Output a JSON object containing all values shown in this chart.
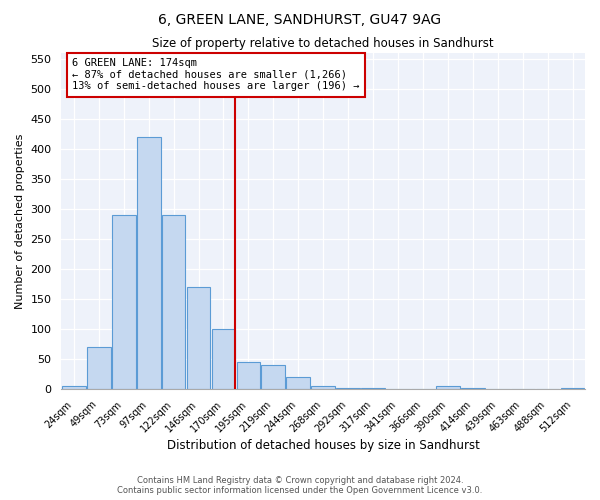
{
  "title": "6, GREEN LANE, SANDHURST, GU47 9AG",
  "subtitle": "Size of property relative to detached houses in Sandhurst",
  "xlabel": "Distribution of detached houses by size in Sandhurst",
  "ylabel": "Number of detached properties",
  "categories": [
    "24sqm",
    "49sqm",
    "73sqm",
    "97sqm",
    "122sqm",
    "146sqm",
    "170sqm",
    "195sqm",
    "219sqm",
    "244sqm",
    "268sqm",
    "292sqm",
    "317sqm",
    "341sqm",
    "366sqm",
    "390sqm",
    "414sqm",
    "439sqm",
    "463sqm",
    "488sqm",
    "512sqm"
  ],
  "values": [
    5,
    70,
    290,
    420,
    290,
    170,
    100,
    45,
    40,
    20,
    5,
    3,
    2,
    1,
    1,
    5,
    3,
    1,
    0,
    1,
    3
  ],
  "bar_color": "#c5d8f0",
  "bar_edge_color": "#5b9bd5",
  "bar_edge_width": 0.8,
  "vline_color": "#cc0000",
  "vline_label": "6 GREEN LANE: 174sqm",
  "annotation_line1": "← 87% of detached houses are smaller (1,266)",
  "annotation_line2": "13% of semi-detached houses are larger (196) →",
  "box_color": "#cc0000",
  "ylim": [
    0,
    560
  ],
  "yticks": [
    0,
    50,
    100,
    150,
    200,
    250,
    300,
    350,
    400,
    450,
    500,
    550
  ],
  "background_color": "#eef2fa",
  "footer_line1": "Contains HM Land Registry data © Crown copyright and database right 2024.",
  "footer_line2": "Contains public sector information licensed under the Open Government Licence v3.0."
}
